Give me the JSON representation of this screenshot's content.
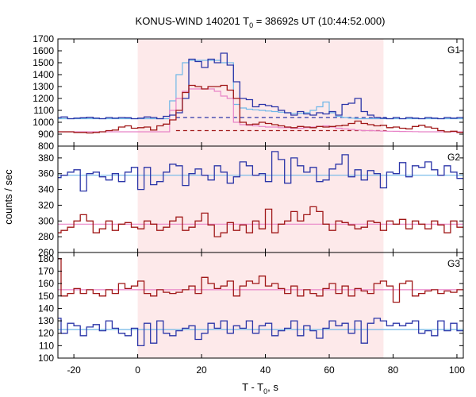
{
  "chart_data": {
    "type": "line",
    "title_main": "KONUS-WIND 140201 T",
    "title_sub": "0",
    "title_rest": " = 38692s UT (10:44:52.000)",
    "xlabel_main": "T - T",
    "xlabel_sub": "0",
    "xlabel_rest": ", s",
    "ylabel": "counts / sec",
    "xlim": [
      -25,
      102
    ],
    "x_ticks": [
      -20,
      0,
      20,
      40,
      60,
      80,
      100
    ],
    "x_tick_labels": [
      "-20",
      "0",
      "20",
      "40",
      "60",
      "80",
      "100"
    ],
    "shaded_interval": [
      0,
      77
    ],
    "colors": {
      "blue": "#2b35a8",
      "red": "#a01818",
      "light_blue": "#6fb7e8",
      "pink": "#e884c8",
      "shade": "#fde9ea"
    },
    "panels": [
      {
        "label": "G1",
        "ylim": [
          800,
          1700
        ],
        "y_ticks": [
          800,
          900,
          1000,
          1100,
          1200,
          1300,
          1400,
          1500,
          1600,
          1700
        ],
        "y_tick_labels": [
          "800",
          "900",
          "1000",
          "1100",
          "1200",
          "1300",
          "1400",
          "1500",
          "1600",
          "1700"
        ],
        "bin_width": 2,
        "x_start": -26,
        "series": [
          {
            "color": "blue",
            "values": [
              1040,
              1045,
              1030,
              1035,
              1038,
              1042,
              1035,
              1030,
              1040,
              1035,
              1040,
              1038,
              1030,
              1035,
              1045,
              1040,
              1030,
              1050,
              1060,
              1080,
              1200,
              1530,
              1510,
              1460,
              1530,
              1500,
              1580,
              1480,
              1340,
              1200,
              1190,
              1130,
              1150,
              1140,
              1130,
              1100,
              1080,
              1060,
              1090,
              1070,
              1060,
              1080,
              1070,
              1090,
              1060,
              1150,
              1160,
              1200,
              1090,
              1060,
              1040,
              1035,
              1030,
              1040,
              1030,
              1040,
              1035,
              1030,
              1040,
              1035,
              1030,
              1040,
              1035,
              1040
            ]
          },
          {
            "color": "red",
            "values": [
              920,
              920,
              920,
              915,
              915,
              910,
              915,
              920,
              930,
              935,
              960,
              970,
              950,
              955,
              960,
              935,
              970,
              985,
              1020,
              1100,
              1250,
              1310,
              1300,
              1280,
              1300,
              1300,
              1310,
              1270,
              1200,
              1000,
              980,
              985,
              1000,
              990,
              980,
              970,
              960,
              955,
              965,
              960,
              955,
              965,
              960,
              965,
              970,
              975,
              990,
              1010,
              990,
              980,
              970,
              975,
              955,
              960,
              950,
              945,
              965,
              975,
              960,
              950,
              930,
              920,
              925,
              915
            ]
          }
        ],
        "fits": [
          {
            "color": "light_blue",
            "values": [
              1030,
              1030,
              1030,
              1030,
              1030,
              1030,
              1030,
              1030,
              1030,
              1030,
              1030,
              1030,
              1030,
              1030,
              1030,
              1030,
              1030,
              1030,
              1180,
              1400,
              1500,
              1520,
              1520,
              1520,
              1520,
              1520,
              1500,
              1500,
              1150,
              1120,
              1110,
              1105,
              1100,
              1095,
              1090,
              1085,
              1080,
              1075,
              1075,
              1080,
              1100,
              1130,
              1170,
              1080,
              1050,
              1040,
              1035,
              1030,
              1030,
              1030,
              1030,
              1030,
              1030,
              1030,
              1030,
              1030,
              1030,
              1030,
              1030,
              1030,
              1030,
              1030,
              1030,
              1030
            ]
          },
          {
            "color": "pink",
            "values": [
              920,
              920,
              920,
              920,
              920,
              920,
              920,
              920,
              920,
              920,
              920,
              920,
              920,
              920,
              920,
              920,
              920,
              920,
              1100,
              1200,
              1260,
              1280,
              1280,
              1280,
              1280,
              1260,
              1220,
              1200,
              1000,
              980,
              975,
              970,
              965,
              960,
              960,
              955,
              955,
              950,
              950,
              955,
              960,
              965,
              970,
              960,
              950,
              945,
              940,
              935,
              930,
              930,
              928,
              926,
              925,
              924,
              923,
              922,
              921,
              920,
              920,
              920,
              920,
              920,
              920,
              920
            ]
          }
        ],
        "dashed_levels": [
          {
            "color": "blue",
            "value": 1040,
            "from": 12,
            "to": 78
          },
          {
            "color": "red",
            "value": 930,
            "from": 12,
            "to": 78
          }
        ]
      },
      {
        "label": "G2",
        "ylim": [
          260,
          395
        ],
        "y_ticks": [
          260,
          280,
          300,
          320,
          340,
          360,
          380
        ],
        "y_tick_labels": [
          "260",
          "280",
          "300",
          "320",
          "340",
          "360",
          "380"
        ],
        "bin_width": 2,
        "x_start": -26,
        "series": [
          {
            "color": "blue",
            "values": [
              355,
              358,
              362,
              365,
              338,
              360,
              362,
              356,
              352,
              360,
              350,
              362,
              368,
              340,
              368,
              346,
              350,
              362,
              372,
              370,
              345,
              360,
              366,
              358,
              352,
              370,
              362,
              348,
              356,
              375,
              370,
              358,
              360,
              350,
              388,
              378,
              348,
              380,
              370,
              362,
              368,
              350,
              352,
              366,
              372,
              384,
              356,
              365,
              352,
              364,
              360,
              342,
              362,
              360,
              374,
              356,
              370,
              368,
              375,
              365,
              358,
              370,
              362,
              354
            ]
          },
          {
            "color": "red",
            "values": [
              285,
              288,
              292,
              300,
              308,
              300,
              285,
              290,
              300,
              288,
              296,
              298,
              292,
              290,
              300,
              296,
              288,
              292,
              300,
              305,
              288,
              292,
              300,
              310,
              295,
              280,
              285,
              298,
              288,
              295,
              285,
              300,
              290,
              315,
              285,
              296,
              300,
              312,
              300,
              308,
              318,
              312,
              296,
              288,
              300,
              298,
              295,
              290,
              292,
              300,
              298,
              288,
              300,
              296,
              302,
              290,
              300,
              296,
              290,
              300,
              295,
              285,
              300,
              292
            ]
          }
        ],
        "fits": [
          {
            "color": "light_blue",
            "values": [
              358,
              358,
              358,
              358,
              358,
              358,
              358,
              358,
              358,
              358,
              358,
              358,
              358,
              358,
              358,
              358,
              358,
              358,
              358,
              358,
              358,
              358,
              358,
              358,
              358,
              358,
              358,
              358,
              358,
              358,
              358,
              358,
              358,
              358,
              358,
              358,
              358,
              358,
              358,
              358,
              358,
              358,
              358,
              358,
              358,
              358,
              358,
              358,
              358,
              358,
              358,
              358,
              358,
              358,
              358,
              358,
              358,
              358,
              358,
              358,
              358,
              358,
              358,
              358
            ]
          },
          {
            "color": "pink",
            "values": [
              296,
              296,
              296,
              296,
              296,
              296,
              296,
              296,
              296,
              296,
              296,
              296,
              296,
              296,
              296,
              296,
              296,
              296,
              296,
              296,
              296,
              296,
              296,
              296,
              296,
              296,
              296,
              296,
              296,
              296,
              296,
              296,
              296,
              296,
              296,
              296,
              296,
              296,
              296,
              296,
              296,
              296,
              296,
              296,
              296,
              296,
              296,
              296,
              296,
              296,
              296,
              296,
              296,
              296,
              296,
              296,
              296,
              296,
              296,
              296,
              296,
              296,
              296,
              296
            ]
          }
        ],
        "dashed_levels": []
      },
      {
        "label": "G3",
        "ylim": [
          100,
          185
        ],
        "y_ticks": [
          100,
          110,
          120,
          130,
          140,
          150,
          160,
          170,
          180
        ],
        "y_tick_labels": [
          "100",
          "110",
          "120",
          "130",
          "140",
          "150",
          "160",
          "170",
          "180"
        ],
        "bin_width": 2,
        "x_start": -26,
        "series": [
          {
            "color": "blue",
            "values": [
              132,
              120,
              128,
              126,
              118,
              125,
              127,
              122,
              130,
              124,
              120,
              118,
              124,
              110,
              128,
              112,
              130,
              120,
              118,
              122,
              124,
              126,
              115,
              120,
              128,
              124,
              130,
              120,
              126,
              124,
              130,
              120,
              126,
              128,
              118,
              122,
              124,
              130,
              118,
              126,
              122,
              116,
              124,
              130,
              126,
              128,
              120,
              130,
              112,
              128,
              132,
              130,
              126,
              128,
              126,
              128,
              130,
              120,
              122,
              118,
              130,
              122,
              128,
              122
            ]
          },
          {
            "color": "red",
            "values": [
              180,
              150,
              152,
              156,
              152,
              155,
              152,
              150,
              155,
              152,
              160,
              156,
              158,
              162,
              152,
              150,
              155,
              153,
              152,
              153,
              155,
              158,
              152,
              165,
              160,
              156,
              158,
              162,
              150,
              158,
              162,
              160,
              166,
              158,
              160,
              156,
              152,
              158,
              150,
              155,
              152,
              150,
              156,
              160,
              152,
              158,
              150,
              156,
              154,
              152,
              160,
              162,
              158,
              145,
              160,
              162,
              150,
              152,
              154,
              155,
              152,
              154,
              153,
              155
            ]
          }
        ],
        "fits": [
          {
            "color": "light_blue",
            "values": [
              123,
              123,
              123,
              123,
              123,
              123,
              123,
              123,
              123,
              123,
              123,
              123,
              123,
              123,
              123,
              123,
              123,
              123,
              123,
              123,
              123,
              123,
              123,
              123,
              123,
              123,
              123,
              123,
              123,
              123,
              123,
              123,
              123,
              123,
              123,
              123,
              123,
              123,
              123,
              123,
              123,
              123,
              123,
              123,
              123,
              123,
              123,
              123,
              123,
              123,
              123,
              123,
              123,
              123,
              123,
              123,
              123,
              123,
              123,
              123,
              123,
              123,
              123,
              123
            ]
          },
          {
            "color": "pink",
            "values": [
              155,
              155,
              155,
              155,
              155,
              155,
              155,
              155,
              155,
              155,
              155,
              155,
              155,
              155,
              155,
              155,
              155,
              155,
              155,
              155,
              155,
              155,
              155,
              155,
              155,
              155,
              155,
              155,
              155,
              155,
              155,
              155,
              155,
              155,
              155,
              155,
              155,
              155,
              155,
              155,
              155,
              155,
              155,
              155,
              155,
              155,
              155,
              155,
              155,
              155,
              155,
              155,
              155,
              155,
              155,
              155,
              155,
              155,
              155,
              155,
              155,
              155,
              155,
              155
            ]
          }
        ],
        "dashed_levels": []
      }
    ]
  }
}
